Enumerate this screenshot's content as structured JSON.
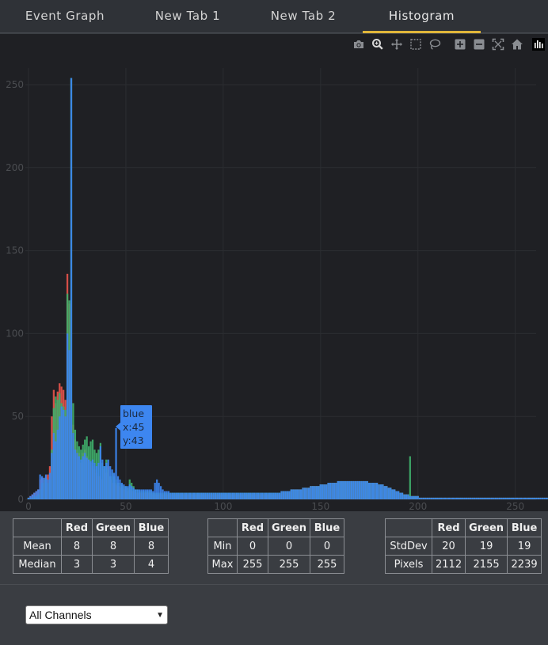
{
  "tabs": [
    {
      "label": "Event Graph",
      "active": false
    },
    {
      "label": "New Tab 1",
      "active": false
    },
    {
      "label": "New Tab 2",
      "active": false
    },
    {
      "label": "Histogram",
      "active": true
    }
  ],
  "toolbar": {
    "icons": [
      "camera-icon",
      "zoom-icon",
      "pan-icon",
      "box-select-icon",
      "lasso-select-icon",
      "zoom-in-icon",
      "zoom-out-icon",
      "autoscale-icon",
      "reset-axes-icon",
      "plotly-logo-icon"
    ],
    "active": "zoom-icon"
  },
  "tooltip": {
    "series": "blue",
    "x_text": "x:45",
    "y_text": "y:43"
  },
  "colors": {
    "red": "#e5534b",
    "green": "#3fae6a",
    "blue": "#3d86f0",
    "background": "#1f2024",
    "grid": "#2b2d31",
    "tick": "#4a4c50",
    "accent": "#e0b63a"
  },
  "chart_data": {
    "type": "bar",
    "barmode": "overlay",
    "x_range": [
      0,
      255
    ],
    "ylim": [
      0,
      260
    ],
    "xticks": [
      0,
      50,
      100,
      150,
      200,
      250
    ],
    "yticks": [
      0,
      50,
      100,
      150,
      200,
      250
    ],
    "grid": true,
    "series": [
      {
        "name": "red",
        "values": [
          1,
          2,
          3,
          4,
          5,
          6,
          12,
          13,
          12,
          14,
          15,
          20,
          50,
          66,
          58,
          65,
          70,
          68,
          66,
          60,
          136,
          118,
          60,
          45,
          36,
          30,
          28,
          22,
          28,
          30,
          26,
          24,
          22,
          20,
          18,
          16,
          14,
          14,
          12,
          18,
          16,
          20,
          12,
          10,
          10,
          9,
          8,
          8,
          7,
          6,
          6,
          5,
          6,
          5,
          5,
          4,
          4,
          4,
          4,
          4,
          4,
          4,
          4,
          4,
          3,
          3,
          3,
          3,
          3,
          3,
          3,
          3,
          3,
          3,
          3,
          3,
          3,
          3,
          3,
          3,
          3,
          3,
          3,
          3,
          3,
          3,
          3,
          3,
          3,
          3,
          3,
          3,
          3,
          3,
          3,
          3,
          3,
          3,
          3,
          3,
          3,
          3,
          3,
          3,
          3,
          3,
          3,
          3,
          3,
          3,
          3,
          3,
          3,
          3,
          3,
          3,
          3,
          3,
          3,
          3,
          3,
          3,
          3,
          3,
          3,
          3,
          3,
          3,
          3,
          3,
          5,
          5,
          5,
          5,
          5,
          6,
          6,
          6,
          6,
          6,
          6,
          7,
          7,
          7,
          7,
          8,
          8,
          8,
          8,
          8,
          9,
          9,
          9,
          9,
          10,
          10,
          10,
          10,
          10,
          11,
          11,
          11,
          11,
          11,
          11,
          11,
          11,
          11,
          11,
          11,
          11,
          11,
          11,
          11,
          11,
          10,
          10,
          10,
          10,
          10,
          9,
          9,
          9,
          8,
          8,
          7,
          7,
          6,
          6,
          5,
          5,
          4,
          4,
          3,
          3,
          3,
          2,
          2,
          2,
          2,
          2,
          1,
          1,
          1,
          1,
          1,
          1,
          1,
          1,
          1,
          1,
          1,
          1,
          1,
          1,
          1,
          1,
          1,
          1,
          1,
          1,
          1,
          1,
          1,
          1,
          1,
          1,
          1,
          1,
          1,
          1,
          1,
          1,
          1,
          1,
          1,
          1,
          1,
          1,
          1,
          1,
          1,
          1,
          1,
          1,
          1,
          1,
          1,
          1,
          1,
          1,
          1,
          1,
          1,
          1,
          1,
          1,
          1,
          1,
          1,
          1,
          1,
          1,
          1,
          1,
          1,
          1,
          1,
          1,
          1,
          1,
          1,
          1,
          24,
          1,
          1,
          1,
          1
        ]
      },
      {
        "name": "green",
        "values": [
          1,
          1,
          1,
          2,
          2,
          3,
          6,
          10,
          12,
          13,
          10,
          12,
          30,
          55,
          62,
          60,
          64,
          58,
          56,
          54,
          124,
          120,
          254,
          58,
          42,
          35,
          32,
          30,
          33,
          36,
          38,
          32,
          35,
          36,
          30,
          28,
          30,
          34,
          22,
          20,
          24,
          18,
          14,
          16,
          14,
          12,
          10,
          10,
          9,
          8,
          8,
          7,
          12,
          10,
          8,
          6,
          6,
          5,
          5,
          5,
          5,
          5,
          5,
          5,
          4,
          4,
          4,
          4,
          4,
          4,
          4,
          4,
          4,
          4,
          4,
          4,
          4,
          4,
          4,
          4,
          4,
          4,
          4,
          4,
          4,
          4,
          4,
          4,
          4,
          4,
          4,
          4,
          4,
          4,
          4,
          4,
          4,
          4,
          4,
          4,
          4,
          4,
          4,
          4,
          4,
          4,
          4,
          4,
          4,
          4,
          4,
          4,
          4,
          4,
          4,
          4,
          4,
          4,
          4,
          4,
          4,
          4,
          4,
          4,
          4,
          4,
          4,
          4,
          4,
          4,
          5,
          5,
          5,
          5,
          5,
          6,
          6,
          6,
          6,
          6,
          6,
          7,
          7,
          7,
          7,
          8,
          8,
          8,
          8,
          8,
          9,
          9,
          9,
          9,
          10,
          10,
          10,
          10,
          10,
          11,
          11,
          11,
          11,
          11,
          11,
          11,
          11,
          11,
          11,
          11,
          11,
          11,
          11,
          11,
          11,
          10,
          10,
          10,
          10,
          10,
          9,
          9,
          9,
          8,
          8,
          7,
          7,
          6,
          6,
          5,
          5,
          4,
          4,
          3,
          3,
          3,
          26,
          2,
          2,
          2,
          2,
          1,
          1,
          1,
          1,
          1,
          1,
          1,
          1,
          1,
          1,
          1,
          1,
          1,
          1,
          1,
          1,
          1,
          1,
          1,
          1,
          1,
          1,
          1,
          1,
          1,
          1,
          1,
          1,
          1,
          1,
          1,
          1,
          1,
          1,
          1,
          1,
          1,
          1,
          1,
          1,
          1,
          1,
          1,
          1,
          1,
          1,
          1,
          1,
          1,
          1,
          1,
          1,
          1,
          1,
          1,
          1,
          1,
          1,
          1,
          1,
          1,
          1,
          1,
          1,
          1,
          1,
          1,
          1,
          1,
          1,
          1,
          1,
          1,
          1,
          1,
          1,
          1
        ]
      },
      {
        "name": "blue",
        "values": [
          1,
          2,
          3,
          4,
          5,
          6,
          15,
          14,
          13,
          15,
          12,
          16,
          28,
          40,
          35,
          42,
          50,
          56,
          54,
          50,
          100,
          90,
          254,
          40,
          30,
          28,
          26,
          24,
          26,
          28,
          25,
          24,
          23,
          24,
          22,
          20,
          22,
          32,
          24,
          20,
          22,
          24,
          20,
          18,
          16,
          43,
          14,
          12,
          10,
          9,
          8,
          8,
          9,
          8,
          7,
          6,
          6,
          6,
          6,
          6,
          6,
          6,
          6,
          6,
          5,
          10,
          12,
          10,
          8,
          6,
          5,
          5,
          5,
          4,
          4,
          4,
          4,
          4,
          4,
          4,
          4,
          4,
          4,
          4,
          4,
          4,
          4,
          4,
          4,
          4,
          4,
          4,
          4,
          4,
          4,
          4,
          4,
          4,
          4,
          4,
          4,
          4,
          4,
          4,
          4,
          4,
          4,
          4,
          4,
          4,
          4,
          4,
          4,
          4,
          4,
          4,
          4,
          4,
          4,
          4,
          4,
          4,
          4,
          4,
          4,
          4,
          4,
          4,
          4,
          4,
          5,
          5,
          5,
          5,
          5,
          6,
          6,
          6,
          6,
          6,
          6,
          7,
          7,
          7,
          7,
          8,
          8,
          8,
          8,
          8,
          9,
          9,
          9,
          9,
          10,
          10,
          10,
          10,
          10,
          11,
          11,
          11,
          11,
          11,
          11,
          11,
          11,
          11,
          11,
          11,
          11,
          11,
          11,
          11,
          11,
          10,
          10,
          10,
          10,
          10,
          9,
          9,
          9,
          8,
          8,
          7,
          7,
          6,
          6,
          5,
          5,
          4,
          4,
          3,
          3,
          3,
          2,
          2,
          2,
          2,
          2,
          1,
          1,
          1,
          1,
          1,
          1,
          1,
          1,
          1,
          1,
          1,
          1,
          1,
          1,
          1,
          1,
          1,
          1,
          1,
          1,
          1,
          1,
          1,
          1,
          1,
          1,
          1,
          1,
          1,
          1,
          1,
          1,
          1,
          1,
          1,
          1,
          1,
          1,
          1,
          1,
          1,
          1,
          1,
          1,
          1,
          1,
          1,
          1,
          1,
          1,
          1,
          1,
          1,
          1,
          1,
          1,
          1,
          1,
          1,
          1,
          1,
          1,
          1,
          1,
          1,
          1,
          1,
          1,
          1,
          1,
          1,
          1,
          1,
          1,
          1,
          8,
          4
        ]
      }
    ]
  },
  "stats": {
    "table1": {
      "columns": [
        "",
        "Red",
        "Green",
        "Blue"
      ],
      "rows": [
        [
          "Mean",
          "8",
          "8",
          "8"
        ],
        [
          "Median",
          "3",
          "3",
          "4"
        ]
      ]
    },
    "table2": {
      "columns": [
        "",
        "Red",
        "Green",
        "Blue"
      ],
      "rows": [
        [
          "Min",
          "0",
          "0",
          "0"
        ],
        [
          "Max",
          "255",
          "255",
          "255"
        ]
      ]
    },
    "table3": {
      "columns": [
        "",
        "Red",
        "Green",
        "Blue"
      ],
      "rows": [
        [
          "StdDev",
          "20",
          "19",
          "19"
        ],
        [
          "Pixels",
          "2112",
          "2155",
          "2239"
        ]
      ]
    }
  },
  "channel_select": {
    "value": "All Channels"
  }
}
